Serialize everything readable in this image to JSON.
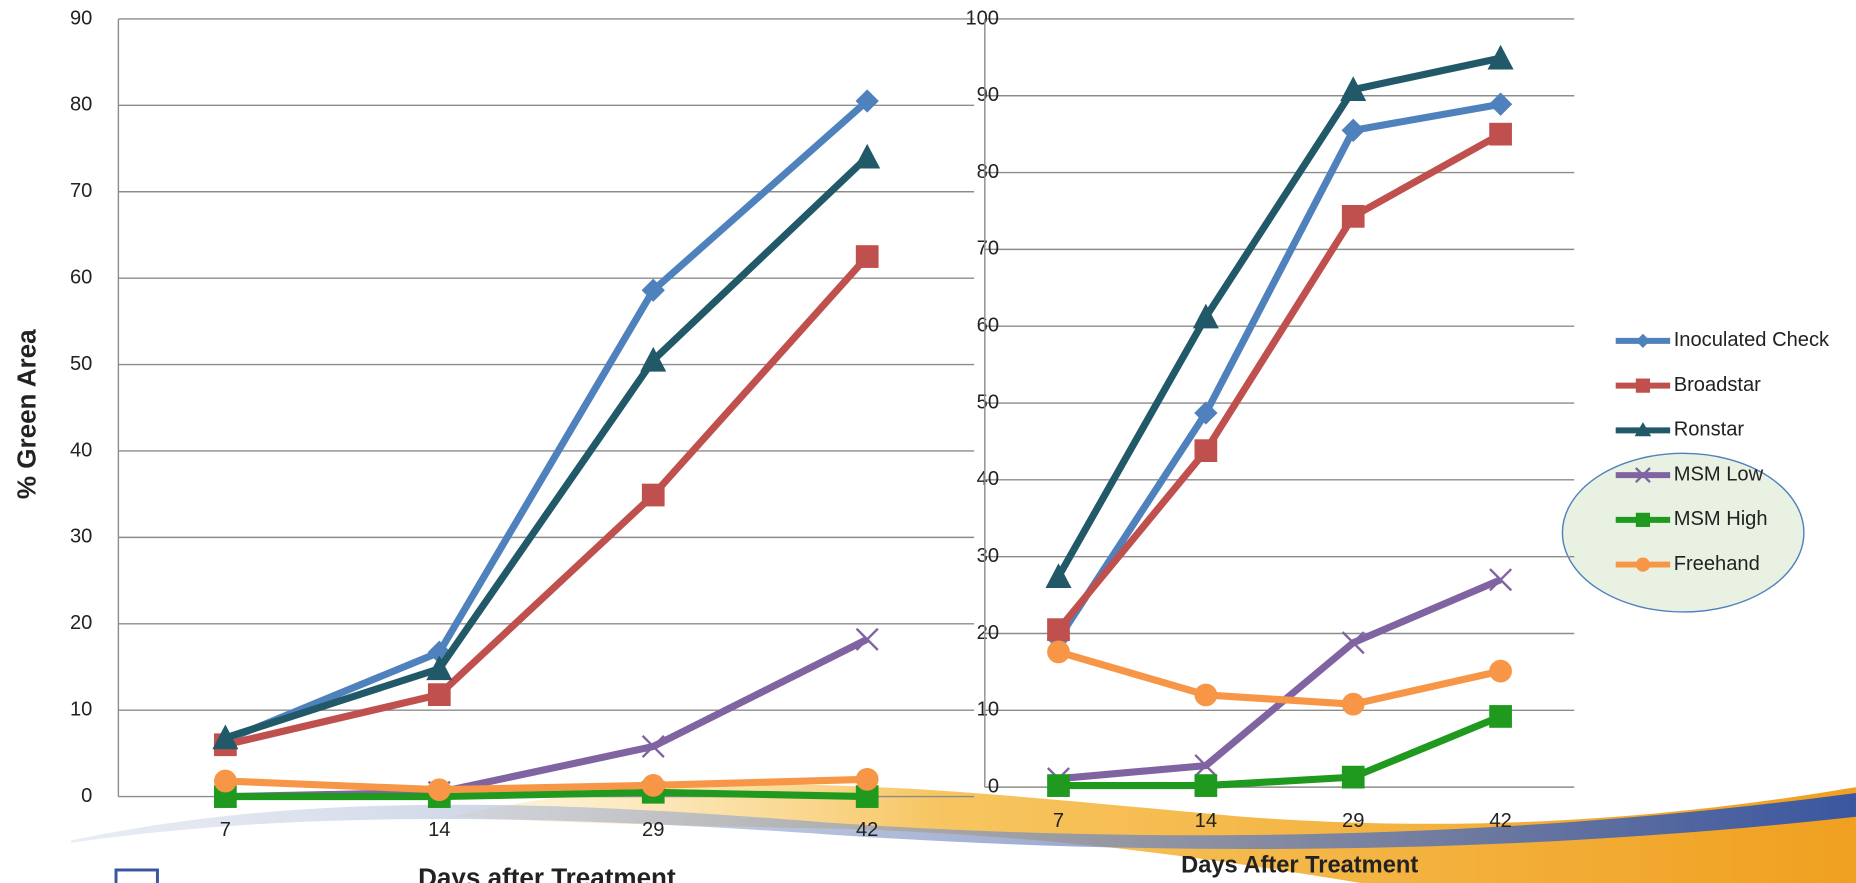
{
  "chart_data": [
    {
      "type": "line",
      "y_label": "% Green Area",
      "x_label": "Days after Treatment",
      "categories": [
        "7",
        "14",
        "29",
        "42"
      ],
      "ylim": [
        0,
        90
      ],
      "yticks": [
        0,
        10,
        20,
        30,
        40,
        50,
        60,
        70,
        80,
        90
      ],
      "grid": true,
      "series": [
        {
          "color": "#4f81bd",
          "marker": "diamond",
          "values": [
            6.5,
            16.7,
            58.6,
            80.5
          ]
        },
        {
          "color": "#c0504d",
          "marker": "square",
          "values": [
            6,
            11.8,
            34.9,
            62.5
          ]
        },
        {
          "color": "#215968",
          "marker": "triangle",
          "values": [
            6.8,
            14.8,
            50.5,
            74
          ]
        },
        {
          "color": "#8064a2",
          "marker": "x",
          "values": [
            0,
            0.5,
            5.8,
            18.2
          ]
        },
        {
          "color": "#1f9a1f",
          "marker": "square",
          "values": [
            0,
            0,
            0.5,
            0
          ]
        },
        {
          "color": "#f79646",
          "marker": "circle",
          "values": [
            1.8,
            0.8,
            1.3,
            2
          ]
        }
      ]
    },
    {
      "type": "line",
      "x_label": "Days After Treatment",
      "categories": [
        "7",
        "14",
        "29",
        "42"
      ],
      "ylim": [
        0,
        100
      ],
      "yticks": [
        0,
        10,
        20,
        30,
        40,
        50,
        60,
        70,
        80,
        90,
        100
      ],
      "grid": true,
      "legend": "right",
      "series": [
        {
          "name": "Inoculated Check",
          "color": "#4f81bd",
          "marker": "diamond",
          "values": [
            19.3,
            48.7,
            85.5,
            88.9
          ]
        },
        {
          "name": "Broadstar",
          "color": "#c0504d",
          "marker": "square",
          "values": [
            20.5,
            43.8,
            74.3,
            85
          ]
        },
        {
          "name": "Ronstar",
          "color": "#215968",
          "marker": "triangle",
          "values": [
            27.4,
            61.2,
            90.8,
            94.9
          ]
        },
        {
          "name": "MSM Low",
          "color": "#8064a2",
          "marker": "x",
          "values": [
            1.1,
            2.8,
            18.8,
            27
          ]
        },
        {
          "name": "MSM High",
          "color": "#1f9a1f",
          "marker": "square",
          "values": [
            0.2,
            0.2,
            1.3,
            9.2
          ]
        },
        {
          "name": "Freehand",
          "color": "#f79646",
          "marker": "circle",
          "values": [
            17.6,
            12,
            10.8,
            15.1
          ]
        }
      ]
    }
  ]
}
